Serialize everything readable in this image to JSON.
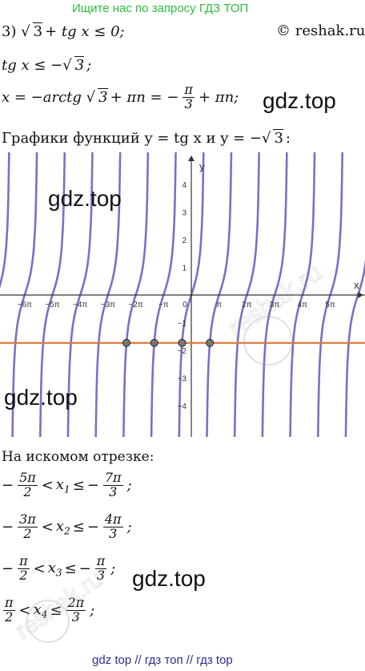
{
  "banner": "Ищите нас по запросу ГДЗ ТОП",
  "copyright": "© reshak.ru",
  "eq1": {
    "lhs_pre": "3) √",
    "rad": "3",
    "rest": "+ tg x ≤ 0;"
  },
  "eq2": {
    "text": "tg x ≤ −√",
    "rad": "3",
    "end": ";"
  },
  "eq3": {
    "lhs": "x = −arctg √",
    "rad": "3",
    "mid": "+ πn = −",
    "num": "π",
    "den": "3",
    "end": "+ πn;"
  },
  "watermark": "gdz.top",
  "graph_caption": {
    "text": "Графики функций y = tg x и y = −√",
    "rad": "3",
    "end": ":"
  },
  "chart_data": {
    "type": "line",
    "title": "",
    "xlabel": "x",
    "ylabel": "y",
    "x_tick_labels": [
      "−6π",
      "−5π",
      "−4π",
      "−3π",
      "−2π",
      "−π",
      "0",
      "π",
      "2π",
      "3π",
      "4π",
      "5π"
    ],
    "y_tick_labels": [
      "4",
      "3",
      "2",
      "1",
      "−1",
      "−2",
      "−3",
      "−4"
    ],
    "y_ticks": [
      4,
      3,
      2,
      1,
      -1,
      -2,
      -3,
      -4
    ],
    "xlim_pi": [
      -6.7,
      6.3
    ],
    "ylim": [
      -4.6,
      5.4
    ],
    "series": [
      {
        "function": "tan(x)",
        "color": "#7b6fc6"
      },
      {
        "function": "-sqrt(3)",
        "color": "#e07a3a"
      }
    ],
    "intersection_points_pi": [
      -2.333,
      -1.333,
      -0.333,
      0.667
    ],
    "intersection_y": -1.732,
    "grid": false
  },
  "answer_heading": "На искомом отрезке:",
  "ranges": [
    {
      "a_sign": "−",
      "a_num": "5π",
      "a_den": "2",
      "var": "x",
      "sub": "1",
      "b_sign": "−",
      "b_num": "7π",
      "b_den": "3"
    },
    {
      "a_sign": "−",
      "a_num": "3π",
      "a_den": "2",
      "var": "x",
      "sub": "2",
      "b_sign": "−",
      "b_num": "4π",
      "b_den": "3"
    },
    {
      "a_sign": "−",
      "a_num": "π",
      "a_den": "2",
      "var": "x",
      "sub": "3",
      "b_sign": "−",
      "b_num": "π",
      "b_den": "3"
    },
    {
      "a_sign": "",
      "a_num": "π",
      "a_den": "2",
      "var": "x",
      "sub": "4",
      "b_sign": "",
      "b_num": "2π",
      "b_den": "3"
    }
  ],
  "footer": "gdz top  //  гдз топ  //  гдз top"
}
